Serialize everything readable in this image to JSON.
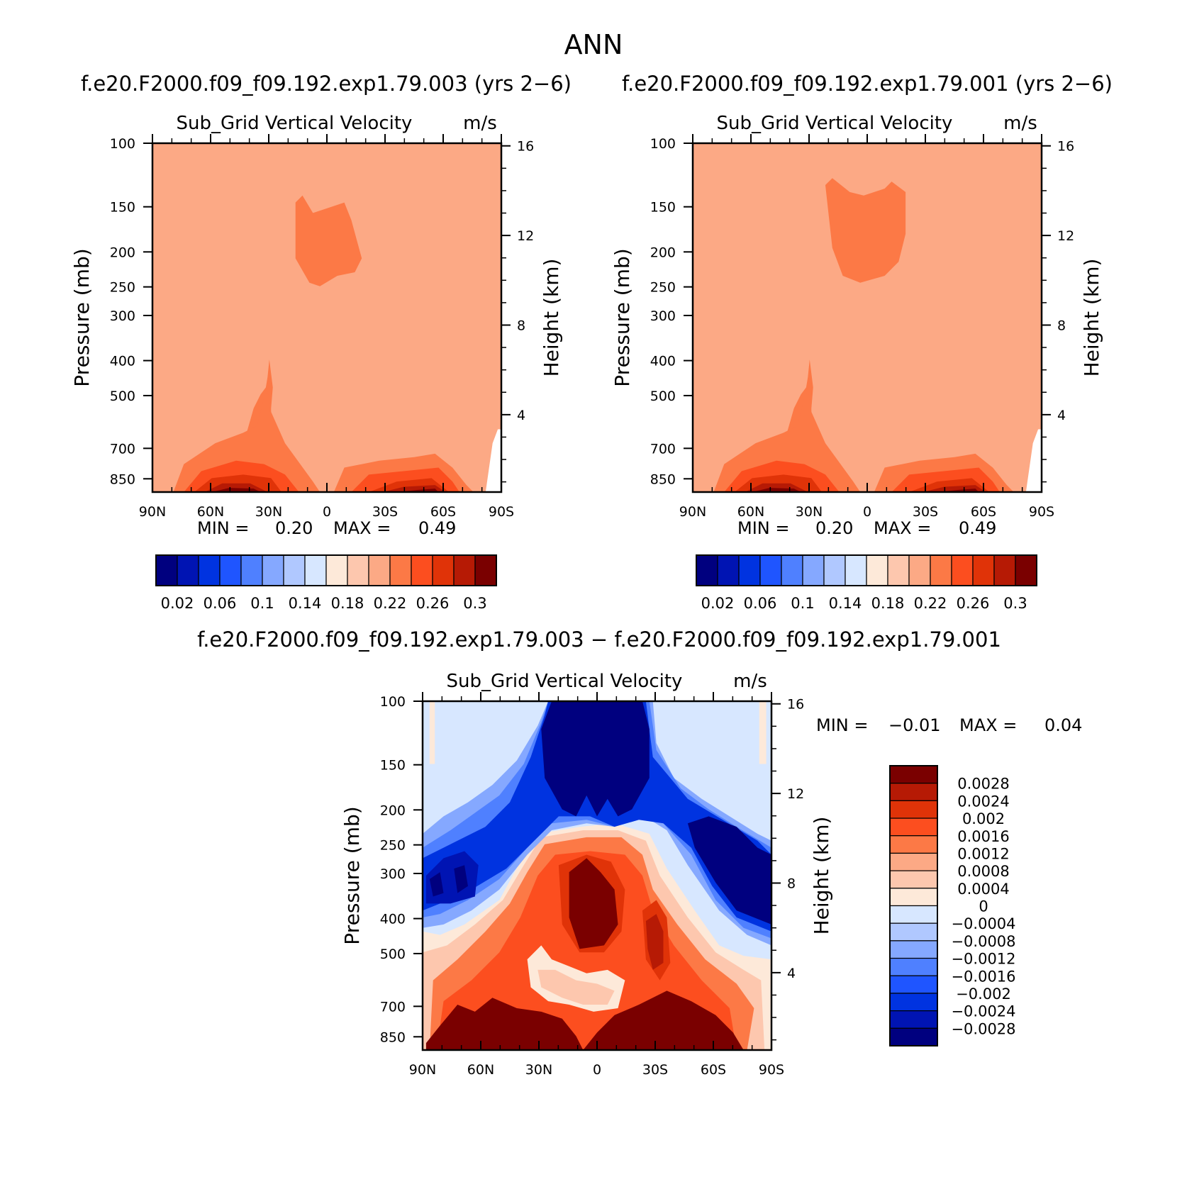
{
  "figure": {
    "title": "ANN"
  },
  "chart_data": [
    {
      "type": "heatmap",
      "title": "f.e20.F2000.f09_f09.192.exp1.79.003 (yrs 2−6)",
      "subtitle": "Sub_Grid Vertical Velocity",
      "units": "m/s",
      "ylabel": "Pressure (mb)",
      "y2label": "Height (km)",
      "x_ticks": [
        "90N",
        "60N",
        "30N",
        "0",
        "30S",
        "60S",
        "90S"
      ],
      "y_ticks": [
        "100",
        "150",
        "200",
        "250",
        "300",
        "400",
        "500",
        "700",
        "850"
      ],
      "y2_ticks": [
        "16",
        "12",
        "8",
        "4"
      ],
      "ylim": [
        100,
        925
      ],
      "stats": {
        "min_label": "MIN =",
        "min": "0.20",
        "max_label": "MAX =",
        "max": "0.49"
      },
      "colorbar": {
        "levels": [
          0.02,
          0.04,
          0.06,
          0.08,
          0.1,
          0.12,
          0.14,
          0.16,
          0.18,
          0.2,
          0.22,
          0.24,
          0.26,
          0.28,
          0.3
        ],
        "tick_labels": [
          "0.02",
          "0.06",
          "0.1",
          "0.14",
          "0.18",
          "0.22",
          "0.26",
          "0.3"
        ],
        "colors": [
          "#00007f",
          "#0014b3",
          "#0033e0",
          "#1f55ff",
          "#4f80ff",
          "#85a8ff",
          "#b0c8ff",
          "#d7e7ff",
          "#fde9d9",
          "#fdc7ae",
          "#fca985",
          "#fc7946",
          "#fc4e1f",
          "#e03308",
          "#b61a05",
          "#7a0000"
        ]
      }
    },
    {
      "type": "heatmap",
      "title": "f.e20.F2000.f09_f09.192.exp1.79.001 (yrs 2−6)",
      "subtitle": "Sub_Grid Vertical Velocity",
      "units": "m/s",
      "ylabel": "Pressure (mb)",
      "y2label": "Height (km)",
      "x_ticks": [
        "90N",
        "60N",
        "30N",
        "0",
        "30S",
        "60S",
        "90S"
      ],
      "y_ticks": [
        "100",
        "150",
        "200",
        "250",
        "300",
        "400",
        "500",
        "700",
        "850"
      ],
      "y2_ticks": [
        "16",
        "12",
        "8",
        "4"
      ],
      "ylim": [
        100,
        925
      ],
      "stats": {
        "min_label": "MIN =",
        "min": "0.20",
        "max_label": "MAX =",
        "max": "0.49"
      },
      "colorbar": {
        "levels": [
          0.02,
          0.04,
          0.06,
          0.08,
          0.1,
          0.12,
          0.14,
          0.16,
          0.18,
          0.2,
          0.22,
          0.24,
          0.26,
          0.28,
          0.3
        ],
        "tick_labels": [
          "0.02",
          "0.06",
          "0.1",
          "0.14",
          "0.18",
          "0.22",
          "0.26",
          "0.3"
        ],
        "colors": [
          "#00007f",
          "#0014b3",
          "#0033e0",
          "#1f55ff",
          "#4f80ff",
          "#85a8ff",
          "#b0c8ff",
          "#d7e7ff",
          "#fde9d9",
          "#fdc7ae",
          "#fca985",
          "#fc7946",
          "#fc4e1f",
          "#e03308",
          "#b61a05",
          "#7a0000"
        ]
      }
    },
    {
      "type": "heatmap",
      "title": "f.e20.F2000.f09_f09.192.exp1.79.003 − f.e20.F2000.f09_f09.192.exp1.79.001",
      "subtitle": "Sub_Grid Vertical Velocity",
      "units": "m/s",
      "ylabel": "Pressure (mb)",
      "y2label": "Height (km)",
      "x_ticks": [
        "90N",
        "60N",
        "30N",
        "0",
        "30S",
        "60S",
        "90S"
      ],
      "y_ticks": [
        "100",
        "150",
        "200",
        "250",
        "300",
        "400",
        "500",
        "700",
        "850"
      ],
      "y2_ticks": [
        "16",
        "12",
        "8",
        "4"
      ],
      "ylim": [
        100,
        925
      ],
      "stats": {
        "min_label": "MIN =",
        "min": "−0.01",
        "max_label": "MAX =",
        "max": "0.04"
      },
      "colorbar": {
        "levels": [
          0.0028,
          0.0024,
          0.002,
          0.0016,
          0.0012,
          0.0008,
          0.0004,
          0,
          -0.0004,
          -0.0008,
          -0.0012,
          -0.0016,
          -0.002,
          -0.0024,
          -0.0028
        ],
        "tick_labels": [
          "0.0028",
          "0.0024",
          "0.002",
          "0.0016",
          "0.0012",
          "0.0008",
          "0.0004",
          "0",
          "−0.0004",
          "−0.0008",
          "−0.0012",
          "−0.0016",
          "−0.002",
          "−0.0024",
          "−0.0028"
        ],
        "colors": [
          "#7a0000",
          "#b61a05",
          "#e03308",
          "#fc4e1f",
          "#fc7946",
          "#fca985",
          "#fdc7ae",
          "#fde9d9",
          "#d7e7ff",
          "#b0c8ff",
          "#85a8ff",
          "#4f80ff",
          "#1f55ff",
          "#0033e0",
          "#0014b3",
          "#00007f"
        ]
      }
    }
  ]
}
